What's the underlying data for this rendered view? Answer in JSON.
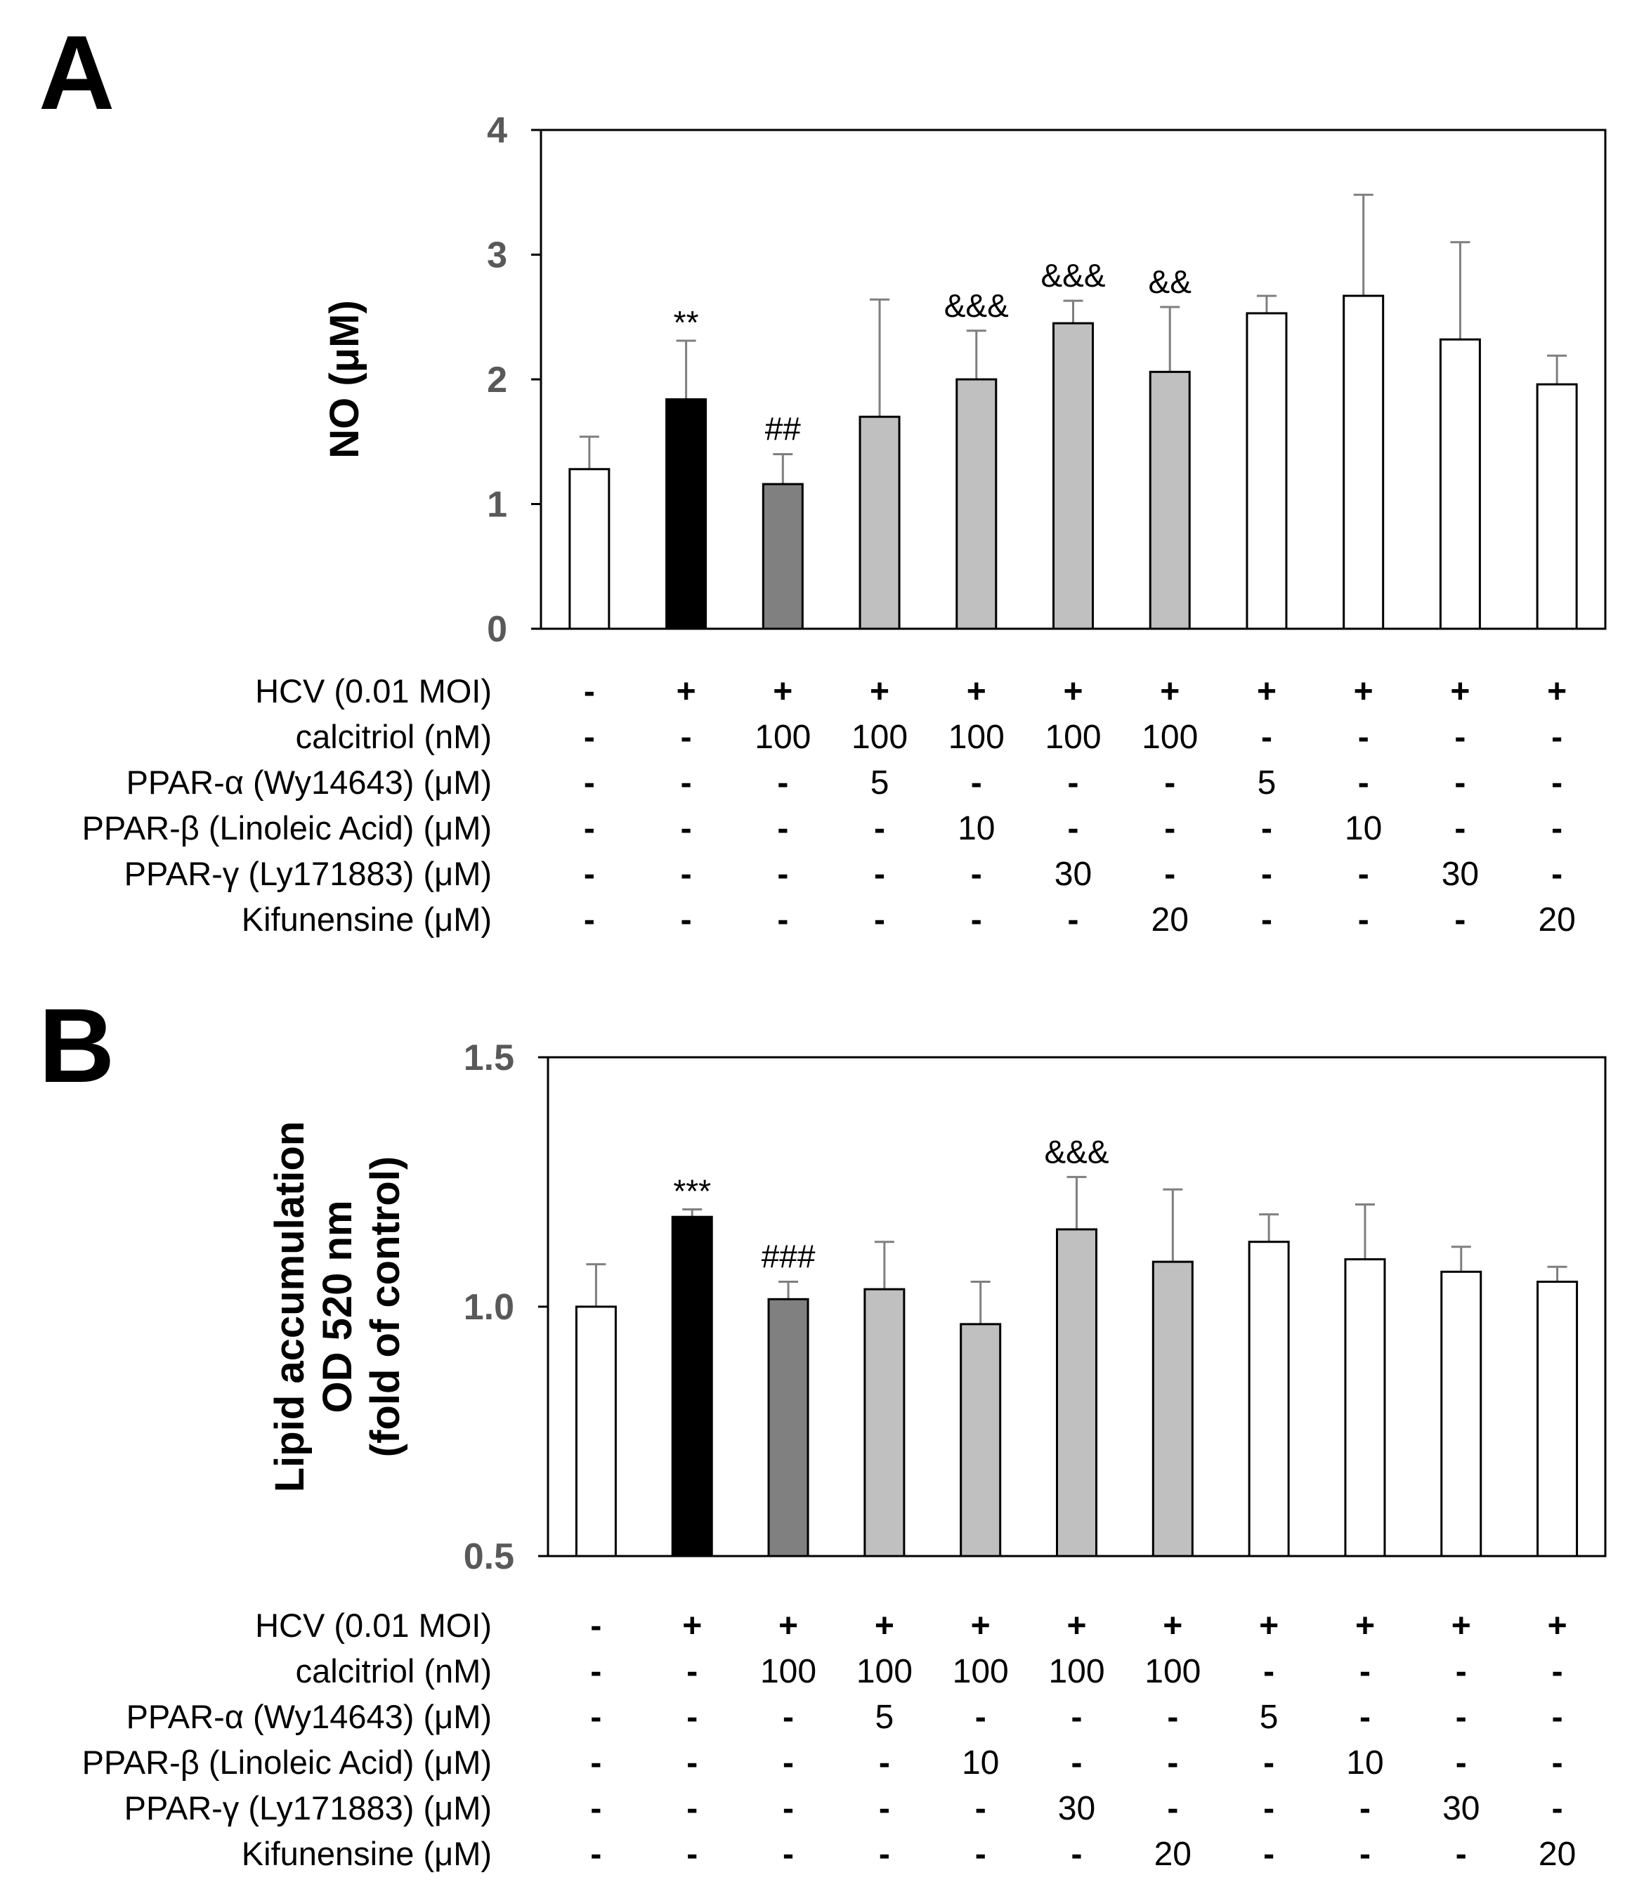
{
  "chart_data": [
    {
      "panel": "A",
      "type": "bar",
      "ylabel": "NO (μM)",
      "ylim": [
        0,
        4
      ],
      "yticks": [
        "0",
        "1",
        "2",
        "3",
        "4"
      ],
      "values": [
        1.28,
        1.84,
        1.16,
        1.7,
        2.0,
        2.45,
        2.06,
        2.53,
        2.67,
        2.32,
        1.96
      ],
      "errors": [
        0.26,
        0.47,
        0.24,
        0.94,
        0.39,
        0.18,
        0.52,
        0.14,
        0.81,
        0.78,
        0.23
      ],
      "fills": [
        "white",
        "black",
        "dark",
        "light",
        "light",
        "light",
        "light",
        "white",
        "white",
        "white",
        "white"
      ],
      "annotations": [
        "",
        "**",
        "##",
        "",
        "&&&",
        "&&&",
        "&&",
        "",
        "",
        "",
        ""
      ],
      "conditions": [
        {
          "label": "HCV (0.01 MOI)",
          "values": [
            "-",
            "+",
            "+",
            "+",
            "+",
            "+",
            "+",
            "+",
            "+",
            "+",
            "+"
          ]
        },
        {
          "label": "calcitriol (nM)",
          "values": [
            "-",
            "-",
            "100",
            "100",
            "100",
            "100",
            "100",
            "-",
            "-",
            "-",
            "-"
          ]
        },
        {
          "label": "PPAR-α (Wy14643) (μM)",
          "values": [
            "-",
            "-",
            "-",
            "5",
            "-",
            "-",
            "-",
            "5",
            "-",
            "-",
            "-"
          ]
        },
        {
          "label": "PPAR-β (Linoleic Acid) (μM)",
          "values": [
            "-",
            "-",
            "-",
            "-",
            "10",
            "-",
            "-",
            "-",
            "10",
            "-",
            "-"
          ]
        },
        {
          "label": "PPAR-γ (Ly171883) (μM)",
          "values": [
            "-",
            "-",
            "-",
            "-",
            "-",
            "30",
            "-",
            "-",
            "-",
            "30",
            "-"
          ]
        },
        {
          "label": "Kifunensine (μM)",
          "values": [
            "-",
            "-",
            "-",
            "-",
            "-",
            "-",
            "20",
            "-",
            "-",
            "-",
            "20"
          ]
        }
      ]
    },
    {
      "panel": "B",
      "type": "bar",
      "ylabel": [
        "Lipid accumulation",
        "OD 520 nm",
        "(fold of control)"
      ],
      "ylim": [
        0.5,
        1.5
      ],
      "yticks": [
        "0.5",
        "1.0",
        "1.5"
      ],
      "values": [
        1.0,
        1.18,
        1.015,
        1.035,
        0.965,
        1.155,
        1.09,
        1.13,
        1.095,
        1.07,
        1.05
      ],
      "errors": [
        0.085,
        0.015,
        0.035,
        0.095,
        0.085,
        0.105,
        0.145,
        0.055,
        0.11,
        0.05,
        0.03
      ],
      "fills": [
        "white",
        "black",
        "dark",
        "light",
        "light",
        "light",
        "light",
        "white",
        "white",
        "white",
        "white"
      ],
      "annotations": [
        "",
        "***",
        "###",
        "",
        "",
        "&&&",
        "",
        "",
        "",
        "",
        ""
      ],
      "conditions": [
        {
          "label": "HCV (0.01 MOI)",
          "values": [
            "-",
            "+",
            "+",
            "+",
            "+",
            "+",
            "+",
            "+",
            "+",
            "+",
            "+"
          ]
        },
        {
          "label": "calcitriol (nM)",
          "values": [
            "-",
            "-",
            "100",
            "100",
            "100",
            "100",
            "100",
            "-",
            "-",
            "-",
            "-"
          ]
        },
        {
          "label": "PPAR-α (Wy14643) (μM)",
          "values": [
            "-",
            "-",
            "-",
            "5",
            "-",
            "-",
            "-",
            "5",
            "-",
            "-",
            "-"
          ]
        },
        {
          "label": "PPAR-β (Linoleic Acid) (μM)",
          "values": [
            "-",
            "-",
            "-",
            "-",
            "10",
            "-",
            "-",
            "-",
            "10",
            "-",
            "-"
          ]
        },
        {
          "label": "PPAR-γ (Ly171883) (μM)",
          "values": [
            "-",
            "-",
            "-",
            "-",
            "-",
            "30",
            "-",
            "-",
            "-",
            "30",
            "-"
          ]
        },
        {
          "label": "Kifunensine (μM)",
          "values": [
            "-",
            "-",
            "-",
            "-",
            "-",
            "-",
            "20",
            "-",
            "-",
            "-",
            "20"
          ]
        }
      ]
    }
  ],
  "colors": {
    "white": "#ffffff",
    "black": "#000000",
    "dark": "#808080",
    "light": "#c0c0c0",
    "axis": "#000000",
    "errorbar": "#7f7f7f",
    "tick_label": "#595959"
  }
}
